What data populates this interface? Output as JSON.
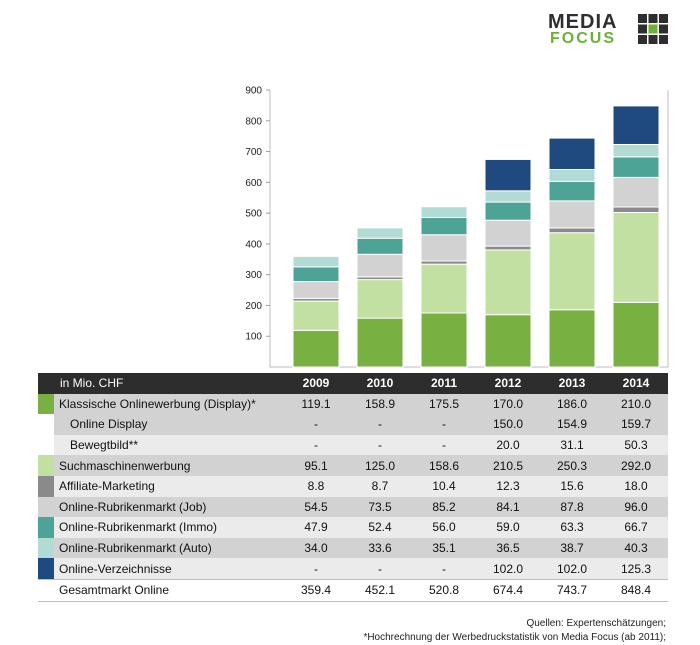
{
  "logo": {
    "line1": "MEDIA",
    "line2": "FOCUS"
  },
  "table": {
    "unit_label": "in Mio. CHF",
    "years": [
      "2009",
      "2010",
      "2011",
      "2012",
      "2013",
      "2014"
    ],
    "rows": [
      {
        "label": "Klassische Onlinewerbung (Display)*",
        "color": "#78b041",
        "indent": false,
        "shade": "shade",
        "values": [
          "119.1",
          "158.9",
          "175.5",
          "170.0",
          "186.0",
          "210.0"
        ]
      },
      {
        "label": "Online Display",
        "color": null,
        "indent": true,
        "shade": "shade",
        "values": [
          "-",
          "-",
          "-",
          "150.0",
          "154.9",
          "159.7"
        ]
      },
      {
        "label": "Bewegtbild**",
        "color": null,
        "indent": true,
        "shade": "light",
        "values": [
          "-",
          "-",
          "-",
          "20.0",
          "31.1",
          "50.3"
        ]
      },
      {
        "label": "Suchmaschinenwerbung",
        "color": "#c2e0a2",
        "indent": false,
        "shade": "shade",
        "values": [
          "95.1",
          "125.0",
          "158.6",
          "210.5",
          "250.3",
          "292.0"
        ]
      },
      {
        "label": "Affiliate-Marketing",
        "color": "#8a8a8a",
        "indent": false,
        "shade": "light",
        "values": [
          "8.8",
          "8.7",
          "10.4",
          "12.3",
          "15.6",
          "18.0"
        ]
      },
      {
        "label": "Online-Rubrikenmarkt (Job)",
        "color": "#d2d2d2",
        "indent": false,
        "shade": "shade",
        "values": [
          "54.5",
          "73.5",
          "85.2",
          "84.1",
          "87.8",
          "96.0"
        ]
      },
      {
        "label": "Online-Rubrikenmarkt (Immo)",
        "color": "#4ea397",
        "indent": false,
        "shade": "light",
        "values": [
          "47.9",
          "52.4",
          "56.0",
          "59.0",
          "63.3",
          "66.7"
        ]
      },
      {
        "label": "Online-Rubrikenmarkt (Auto)",
        "color": "#b3dbd6",
        "indent": false,
        "shade": "shade",
        "values": [
          "34.0",
          "33.6",
          "35.1",
          "36.5",
          "38.7",
          "40.3"
        ]
      },
      {
        "label": "Online-Verzeichnisse",
        "color": "#1f4a80",
        "indent": false,
        "shade": "light",
        "values": [
          "-",
          "-",
          "-",
          "102.0",
          "102.0",
          "125.3"
        ]
      },
      {
        "label": "Gesamtmarkt Online",
        "color": null,
        "indent": false,
        "shade": "total",
        "values": [
          "359.4",
          "452.1",
          "520.8",
          "674.4",
          "743.7",
          "848.4"
        ]
      }
    ]
  },
  "sources": {
    "line1": "Quellen: Expertenschätzungen;",
    "line2": "*Hochrechnung der Werbedruckstatistik von Media Focus (ab 2011);"
  },
  "chart_data": {
    "type": "bar",
    "stacked": true,
    "categories": [
      "2009",
      "2010",
      "2011",
      "2012",
      "2013",
      "2014"
    ],
    "ylim": [
      0,
      900
    ],
    "yticks": [
      "100",
      "200",
      "300",
      "400",
      "500",
      "600",
      "700",
      "800",
      "900"
    ],
    "grid": false,
    "series": [
      {
        "name": "Klassische Onlinewerbung (Display)*",
        "color": "#78b041",
        "values": [
          119.1,
          158.9,
          175.5,
          170.0,
          186.0,
          210.0
        ]
      },
      {
        "name": "Suchmaschinenwerbung",
        "color": "#c2e0a2",
        "values": [
          95.1,
          125.0,
          158.6,
          210.5,
          250.3,
          292.0
        ]
      },
      {
        "name": "Affiliate-Marketing",
        "color": "#8a8a8a",
        "values": [
          8.8,
          8.7,
          10.4,
          12.3,
          15.6,
          18.0
        ]
      },
      {
        "name": "Online-Rubrikenmarkt (Job)",
        "color": "#d2d2d2",
        "values": [
          54.5,
          73.5,
          85.2,
          84.1,
          87.8,
          96.0
        ]
      },
      {
        "name": "Online-Rubrikenmarkt (Immo)",
        "color": "#4ea397",
        "values": [
          47.9,
          52.4,
          56.0,
          59.0,
          63.3,
          66.7
        ]
      },
      {
        "name": "Online-Rubrikenmarkt (Auto)",
        "color": "#b3dbd6",
        "values": [
          34.0,
          33.6,
          35.1,
          36.5,
          38.7,
          40.3
        ]
      },
      {
        "name": "Online-Verzeichnisse",
        "color": "#1f4a80",
        "values": [
          0,
          0,
          0,
          102.0,
          102.0,
          125.3
        ]
      }
    ]
  }
}
